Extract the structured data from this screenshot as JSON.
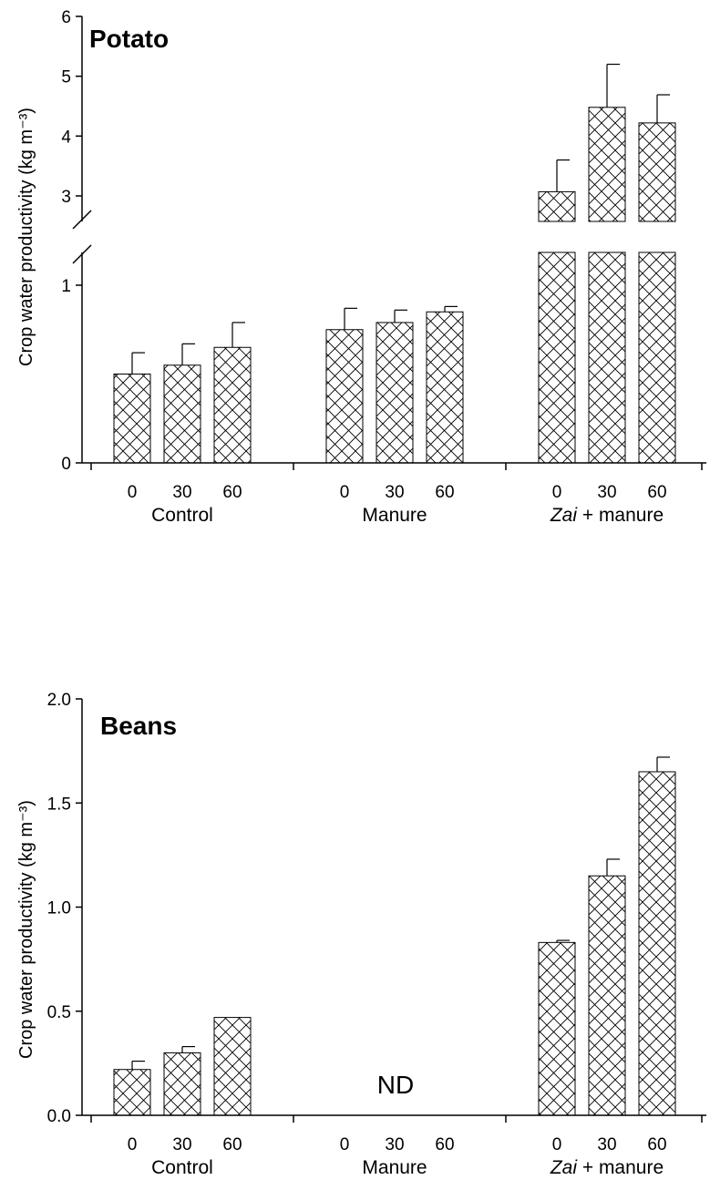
{
  "chart_data": [
    {
      "type": "bar",
      "title": "Potato",
      "ylabel": "Crop water productivity (kg m⁻³)",
      "y_axis_break": [
        1.2,
        2.5
      ],
      "yticks": [
        "0",
        "1",
        "3",
        "4",
        "5",
        "6"
      ],
      "ylim": [
        0,
        6
      ],
      "groups": [
        {
          "label": "Control",
          "label_italic": "",
          "categories": [
            "0",
            "30",
            "60"
          ],
          "values": [
            0.5,
            0.55,
            0.65
          ],
          "errors": [
            0.12,
            0.12,
            0.14
          ]
        },
        {
          "label": "Manure",
          "label_italic": "",
          "categories": [
            "0",
            "30",
            "60"
          ],
          "values": [
            0.75,
            0.79,
            0.85
          ],
          "errors": [
            0.12,
            0.07,
            0.03
          ]
        },
        {
          "label": "+ manure",
          "label_italic": "Zai",
          "categories": [
            "0",
            "30",
            "60"
          ],
          "values": [
            3.07,
            4.48,
            4.22
          ],
          "errors": [
            0.53,
            0.72,
            0.47
          ]
        }
      ]
    },
    {
      "type": "bar",
      "title": "Beans",
      "ylabel": "Crop water productivity (kg m⁻³)",
      "yticks": [
        "0.0",
        "0.5",
        "1.0",
        "1.5",
        "2.0"
      ],
      "ylim": [
        0,
        2.0
      ],
      "annotation": "ND",
      "groups": [
        {
          "label": "Control",
          "label_italic": "",
          "categories": [
            "0",
            "30",
            "60"
          ],
          "values": [
            0.22,
            0.3,
            0.47
          ],
          "errors": [
            0.04,
            0.03,
            0.0
          ]
        },
        {
          "label": "Manure",
          "label_italic": "",
          "categories": [
            "0",
            "30",
            "60"
          ],
          "values": [
            null,
            null,
            null
          ],
          "errors": [
            null,
            null,
            null
          ]
        },
        {
          "label": "+ manure",
          "label_italic": "Zai",
          "categories": [
            "0",
            "30",
            "60"
          ],
          "values": [
            0.83,
            1.15,
            1.65
          ],
          "errors": [
            0.01,
            0.08,
            0.07
          ]
        }
      ]
    }
  ]
}
